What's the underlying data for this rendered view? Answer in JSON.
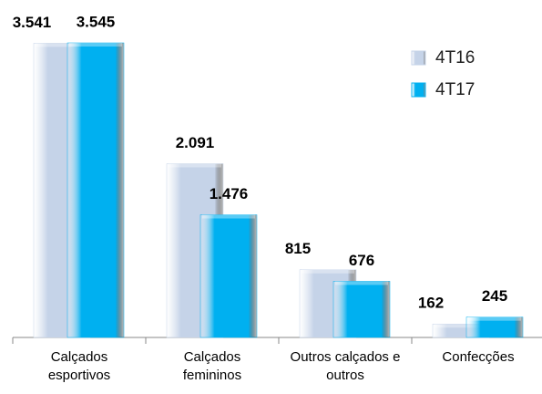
{
  "chart_data": {
    "type": "bar",
    "categories": [
      "Calçados esportivos",
      "Calçados femininos",
      "Outros calçados e outros",
      "Confecções"
    ],
    "series": [
      {
        "name": "4T16",
        "color": "#c5d3e8",
        "values": [
          3541,
          2091,
          815,
          162
        ],
        "value_labels": [
          "3.541",
          "2.091",
          "815",
          "162"
        ]
      },
      {
        "name": "4T17",
        "color": "#00b0f0",
        "values": [
          3545,
          1476,
          676,
          245
        ],
        "value_labels": [
          "3.545",
          "1.476",
          "676",
          "245"
        ]
      }
    ],
    "legend": "upper right"
  }
}
